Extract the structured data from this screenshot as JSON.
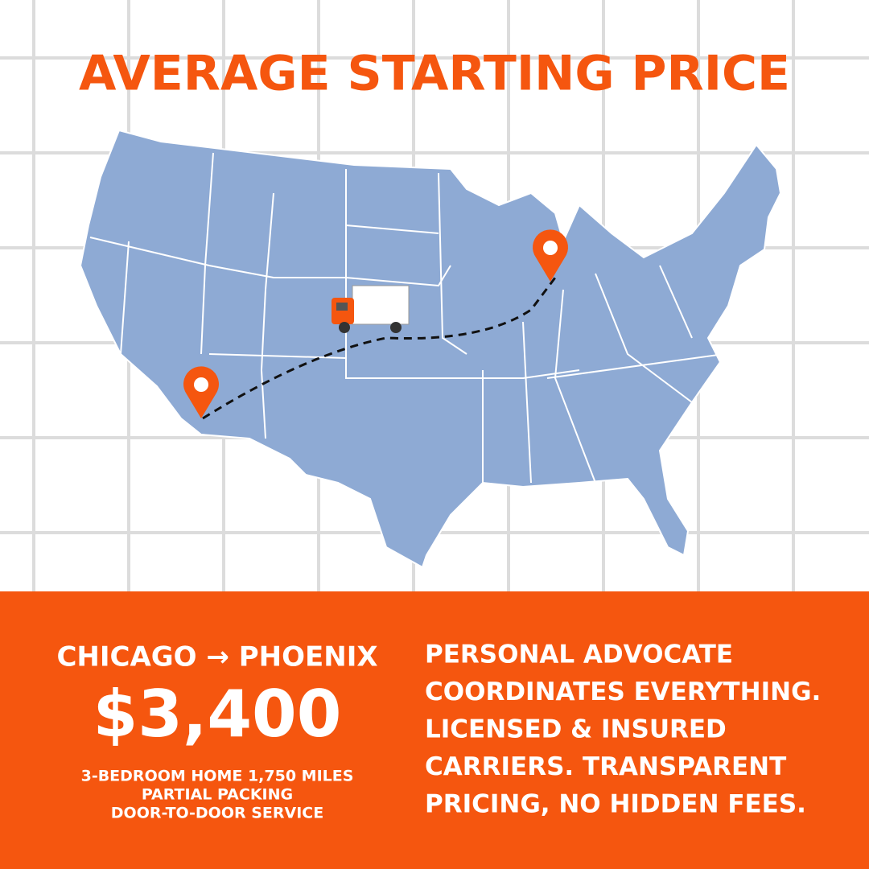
{
  "header": {
    "title": "AVERAGE STARTING PRICE"
  },
  "route": "CHICAGO → PHOENIX",
  "price": "$3,400",
  "details": [
    "3-BEDROOM HOME 1,750 MILES",
    "PARTIAL PACKING",
    "DOOR-TO-DOOR SERVICE"
  ],
  "description": [
    "PERSONAL ADVOCATE",
    "COORDINATES EVERYTHING.",
    "LICENSED & INSURED",
    "CARRIERS. TRANSPARENT",
    "PRICING, NO HIDDEN FEES."
  ]
}
